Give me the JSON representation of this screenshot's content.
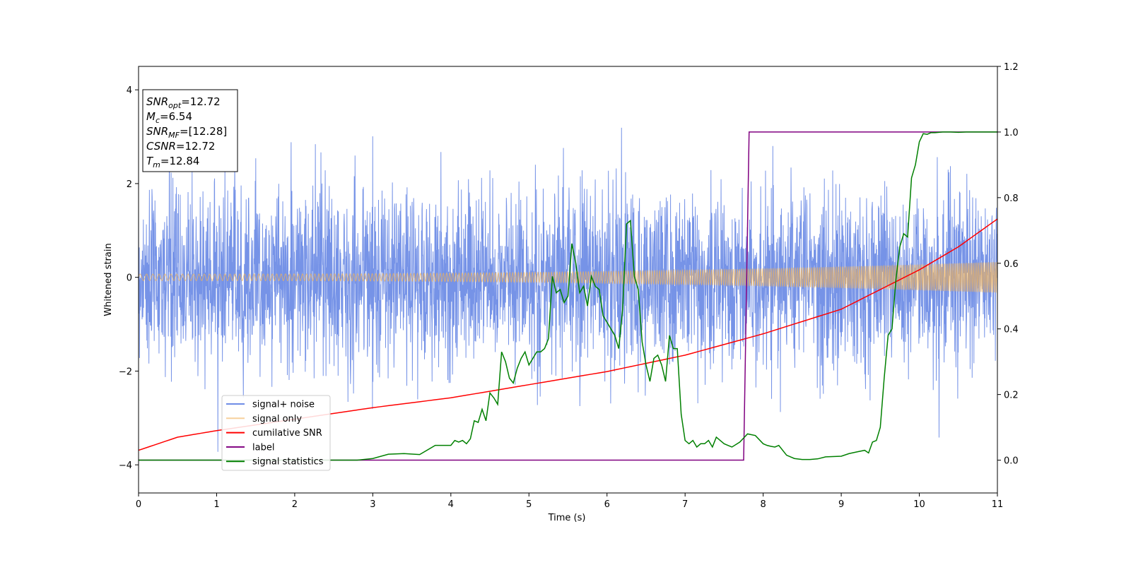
{
  "chart_data": {
    "type": "line",
    "title": "",
    "xlabel": "Time (s)",
    "ylabel": "Whitened strain",
    "y2label": "",
    "xlim": [
      0,
      11
    ],
    "ylim": [
      -4.6,
      4.5
    ],
    "y2lim": [
      -0.1,
      1.2
    ],
    "x_ticks": [
      "0",
      "1",
      "2",
      "3",
      "4",
      "5",
      "6",
      "7",
      "8",
      "9",
      "10",
      "11"
    ],
    "y_ticks": [
      "−4",
      "−2",
      "0",
      "2",
      "4"
    ],
    "y2_ticks": [
      "0.0",
      "0.2",
      "0.4",
      "0.6",
      "0.8",
      "1.0",
      "1.2"
    ],
    "y_tick_values": [
      -4,
      -2,
      0,
      2,
      4
    ],
    "y2_tick_values": [
      0.0,
      0.2,
      0.4,
      0.6,
      0.8,
      1.0,
      1.2
    ],
    "grid": false,
    "legend_position": "lower-left",
    "colors": {
      "noise": "#6f8de6",
      "signal": "#f2b35a",
      "snr": "#ff0000",
      "label": "#800080",
      "stats": "#008000"
    },
    "annotation": {
      "lines": [
        {
          "base": "SNR",
          "sub": "opt",
          "rest": "=12.72"
        },
        {
          "base": "M",
          "sub": "c",
          "rest": "=6.54"
        },
        {
          "base": "SNR",
          "sub": "MF",
          "rest": "=[12.28]"
        },
        {
          "base": "CSNR",
          "sub": "",
          "rest": "=12.72"
        },
        {
          "base": "T",
          "sub": "m",
          "rest": "=12.84"
        }
      ]
    },
    "series": [
      {
        "name": "signal+ noise",
        "axis": "left",
        "kind": "noise",
        "std": 0.95,
        "x_range": [
          0,
          11
        ]
      },
      {
        "name": "signal only",
        "axis": "left",
        "kind": "chirp",
        "amplitude_start": 0.07,
        "amplitude_end": 0.33,
        "x_range": [
          0,
          11
        ]
      },
      {
        "name": "cumilative SNR",
        "axis": "right",
        "x": [
          0,
          0.5,
          1,
          2,
          3,
          4,
          5,
          6,
          7,
          8,
          9,
          10,
          10.5,
          11
        ],
        "y": [
          0.03,
          0.07,
          0.09,
          0.125,
          0.16,
          0.19,
          0.23,
          0.27,
          0.32,
          0.385,
          0.46,
          0.58,
          0.65,
          0.735
        ]
      },
      {
        "name": "label",
        "axis": "right",
        "x": [
          0,
          7.75,
          7.82,
          11
        ],
        "y": [
          0.0,
          0.0,
          1.0,
          1.0
        ]
      },
      {
        "name": "signal statistics",
        "axis": "right",
        "x": [
          0,
          2.8,
          3.0,
          3.2,
          3.4,
          3.6,
          3.8,
          3.9,
          4.0,
          4.05,
          4.1,
          4.15,
          4.2,
          4.25,
          4.3,
          4.35,
          4.4,
          4.45,
          4.5,
          4.55,
          4.6,
          4.65,
          4.7,
          4.75,
          4.8,
          4.85,
          4.9,
          4.95,
          5.0,
          5.05,
          5.1,
          5.15,
          5.2,
          5.25,
          5.3,
          5.35,
          5.4,
          5.45,
          5.5,
          5.55,
          5.6,
          5.65,
          5.7,
          5.75,
          5.8,
          5.85,
          5.9,
          5.95,
          6.0,
          6.05,
          6.1,
          6.15,
          6.2,
          6.25,
          6.3,
          6.35,
          6.4,
          6.45,
          6.5,
          6.55,
          6.6,
          6.65,
          6.7,
          6.75,
          6.8,
          6.85,
          6.9,
          6.95,
          7.0,
          7.05,
          7.1,
          7.15,
          7.2,
          7.25,
          7.3,
          7.35,
          7.4,
          7.45,
          7.5,
          7.55,
          7.6,
          7.7,
          7.8,
          7.9,
          8.0,
          8.05,
          8.1,
          8.15,
          8.2,
          8.3,
          8.4,
          8.5,
          8.6,
          8.7,
          8.8,
          9.0,
          9.1,
          9.2,
          9.3,
          9.35,
          9.4,
          9.45,
          9.5,
          9.55,
          9.6,
          9.65,
          9.7,
          9.75,
          9.8,
          9.85,
          9.9,
          9.95,
          10.0,
          10.05,
          10.1,
          10.15,
          10.2,
          10.3,
          10.4,
          10.5,
          10.6,
          10.8,
          11.0
        ],
        "y": [
          0.0,
          0.0,
          0.005,
          0.018,
          0.02,
          0.017,
          0.045,
          0.045,
          0.045,
          0.06,
          0.055,
          0.06,
          0.05,
          0.065,
          0.12,
          0.115,
          0.155,
          0.12,
          0.205,
          0.19,
          0.17,
          0.33,
          0.3,
          0.25,
          0.235,
          0.28,
          0.31,
          0.33,
          0.29,
          0.31,
          0.33,
          0.33,
          0.34,
          0.37,
          0.56,
          0.51,
          0.52,
          0.48,
          0.5,
          0.66,
          0.6,
          0.51,
          0.53,
          0.47,
          0.56,
          0.53,
          0.52,
          0.44,
          0.42,
          0.4,
          0.38,
          0.34,
          0.46,
          0.72,
          0.73,
          0.56,
          0.52,
          0.36,
          0.29,
          0.24,
          0.31,
          0.32,
          0.29,
          0.24,
          0.38,
          0.34,
          0.34,
          0.14,
          0.06,
          0.05,
          0.06,
          0.04,
          0.05,
          0.05,
          0.06,
          0.04,
          0.07,
          0.06,
          0.05,
          0.045,
          0.04,
          0.055,
          0.08,
          0.075,
          0.05,
          0.045,
          0.042,
          0.04,
          0.045,
          0.015,
          0.005,
          0.002,
          0.002,
          0.004,
          0.01,
          0.012,
          0.02,
          0.025,
          0.03,
          0.022,
          0.055,
          0.06,
          0.1,
          0.25,
          0.38,
          0.4,
          0.55,
          0.65,
          0.69,
          0.68,
          0.86,
          0.9,
          0.97,
          0.995,
          0.993,
          0.998,
          0.998,
          1.0,
          1.0,
          0.999,
          1.0,
          1.0,
          1.0
        ]
      }
    ]
  }
}
